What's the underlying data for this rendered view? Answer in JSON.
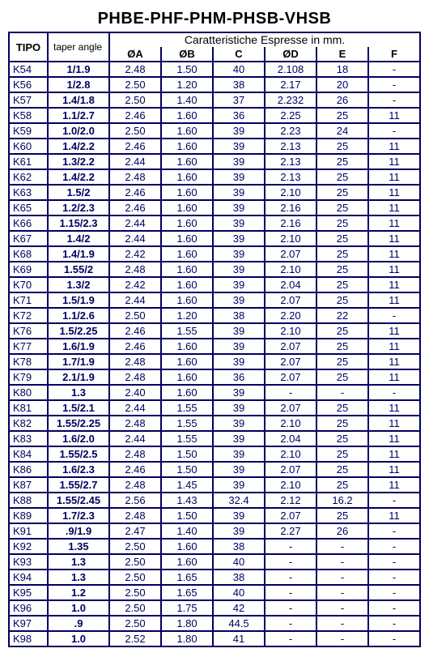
{
  "title": "PHBE-PHF-PHM-PHSB-VHSB",
  "headers": {
    "tipo": "TIPO",
    "taper": "taper angle",
    "characteristics": "Caratteristiche Espresse in mm.",
    "cols": [
      "ØA",
      "ØB",
      "C",
      "ØD",
      "E",
      "F"
    ]
  },
  "rows": [
    {
      "tipo": "K54",
      "taper": "1/1.9",
      "a": "2.48",
      "b": "1.50",
      "c": "40",
      "d": "2.108",
      "e": "18",
      "f": "-"
    },
    {
      "tipo": "K56",
      "taper": "1/2.8",
      "a": "2.50",
      "b": "1.20",
      "c": "38",
      "d": "2.17",
      "e": "20",
      "f": "-"
    },
    {
      "tipo": "K57",
      "taper": "1.4/1.8",
      "a": "2.50",
      "b": "1.40",
      "c": "37",
      "d": "2.232",
      "e": "26",
      "f": "-"
    },
    {
      "tipo": "K58",
      "taper": "1.1/2.7",
      "a": "2.46",
      "b": "1.60",
      "c": "36",
      "d": "2.25",
      "e": "25",
      "f": "11"
    },
    {
      "tipo": "K59",
      "taper": "1.0/2.0",
      "a": "2.50",
      "b": "1.60",
      "c": "39",
      "d": "2.23",
      "e": "24",
      "f": "-"
    },
    {
      "tipo": "K60",
      "taper": "1.4/2.2",
      "a": "2.46",
      "b": "1.60",
      "c": "39",
      "d": "2.13",
      "e": "25",
      "f": "11"
    },
    {
      "tipo": "K61",
      "taper": "1.3/2.2",
      "a": "2.44",
      "b": "1.60",
      "c": "39",
      "d": "2.13",
      "e": "25",
      "f": "11"
    },
    {
      "tipo": "K62",
      "taper": "1.4/2.2",
      "a": "2.48",
      "b": "1.60",
      "c": "39",
      "d": "2.13",
      "e": "25",
      "f": "11"
    },
    {
      "tipo": "K63",
      "taper": "1.5/2",
      "a": "2.46",
      "b": "1.60",
      "c": "39",
      "d": "2.10",
      "e": "25",
      "f": "11"
    },
    {
      "tipo": "K65",
      "taper": "1.2/2.3",
      "a": "2.46",
      "b": "1.60",
      "c": "39",
      "d": "2.16",
      "e": "25",
      "f": "11"
    },
    {
      "tipo": "K66",
      "taper": "1.15/2.3",
      "a": "2.44",
      "b": "1.60",
      "c": "39",
      "d": "2.16",
      "e": "25",
      "f": "11"
    },
    {
      "tipo": "K67",
      "taper": "1.4/2",
      "a": "2.44",
      "b": "1.60",
      "c": "39",
      "d": "2.10",
      "e": "25",
      "f": "11"
    },
    {
      "tipo": "K68",
      "taper": "1.4/1.9",
      "a": "2.42",
      "b": "1.60",
      "c": "39",
      "d": "2.07",
      "e": "25",
      "f": "11"
    },
    {
      "tipo": "K69",
      "taper": "1.55/2",
      "a": "2.48",
      "b": "1.60",
      "c": "39",
      "d": "2.10",
      "e": "25",
      "f": "11"
    },
    {
      "tipo": "K70",
      "taper": "1.3/2",
      "a": "2.42",
      "b": "1.60",
      "c": "39",
      "d": "2.04",
      "e": "25",
      "f": "11"
    },
    {
      "tipo": "K71",
      "taper": "1.5/1.9",
      "a": "2.44",
      "b": "1.60",
      "c": "39",
      "d": "2.07",
      "e": "25",
      "f": "11"
    },
    {
      "tipo": "K72",
      "taper": "1.1/2.6",
      "a": "2.50",
      "b": "1.20",
      "c": "38",
      "d": "2.20",
      "e": "22",
      "f": "-"
    },
    {
      "tipo": "K76",
      "taper": "1.5/2.25",
      "a": "2.46",
      "b": "1.55",
      "c": "39",
      "d": "2.10",
      "e": "25",
      "f": "11"
    },
    {
      "tipo": "K77",
      "taper": "1.6/1.9",
      "a": "2.46",
      "b": "1.60",
      "c": "39",
      "d": "2.07",
      "e": "25",
      "f": "11"
    },
    {
      "tipo": "K78",
      "taper": "1.7/1.9",
      "a": "2.48",
      "b": "1.60",
      "c": "39",
      "d": "2.07",
      "e": "25",
      "f": "11"
    },
    {
      "tipo": "K79",
      "taper": "2.1/1.9",
      "a": "2.48",
      "b": "1.60",
      "c": "36",
      "d": "2.07",
      "e": "25",
      "f": "11"
    },
    {
      "tipo": "K80",
      "taper": "1.3",
      "a": "2.40",
      "b": "1.60",
      "c": "39",
      "d": "-",
      "e": "-",
      "f": "-"
    },
    {
      "tipo": "K81",
      "taper": "1.5/2.1",
      "a": "2.44",
      "b": "1.55",
      "c": "39",
      "d": "2.07",
      "e": "25",
      "f": "11"
    },
    {
      "tipo": "K82",
      "taper": "1.55/2.25",
      "a": "2.48",
      "b": "1.55",
      "c": "39",
      "d": "2.10",
      "e": "25",
      "f": "11"
    },
    {
      "tipo": "K83",
      "taper": "1.6/2.0",
      "a": "2.44",
      "b": "1.55",
      "c": "39",
      "d": "2.04",
      "e": "25",
      "f": "11"
    },
    {
      "tipo": "K84",
      "taper": "1.55/2.5",
      "a": "2.48",
      "b": "1.50",
      "c": "39",
      "d": "2.10",
      "e": "25",
      "f": "11"
    },
    {
      "tipo": "K86",
      "taper": "1.6/2.3",
      "a": "2.46",
      "b": "1.50",
      "c": "39",
      "d": "2.07",
      "e": "25",
      "f": "11"
    },
    {
      "tipo": "K87",
      "taper": "1.55/2.7",
      "a": "2.48",
      "b": "1.45",
      "c": "39",
      "d": "2.10",
      "e": "25",
      "f": "11"
    },
    {
      "tipo": "K88",
      "taper": "1.55/2.45",
      "a": "2.56",
      "b": "1.43",
      "c": "32.4",
      "d": "2.12",
      "e": "16.2",
      "f": "-"
    },
    {
      "tipo": "K89",
      "taper": "1.7/2.3",
      "a": "2.48",
      "b": "1.50",
      "c": "39",
      "d": "2.07",
      "e": "25",
      "f": "11"
    },
    {
      "tipo": "K91",
      "taper": ".9/1.9",
      "a": "2.47",
      "b": "1.40",
      "c": "39",
      "d": "2.27",
      "e": "26",
      "f": "-"
    },
    {
      "tipo": "K92",
      "taper": "1.35",
      "a": "2.50",
      "b": "1.60",
      "c": "38",
      "d": "-",
      "e": "-",
      "f": "-"
    },
    {
      "tipo": "K93",
      "taper": "1.3",
      "a": "2.50",
      "b": "1.60",
      "c": "40",
      "d": "-",
      "e": "-",
      "f": "-"
    },
    {
      "tipo": "K94",
      "taper": "1.3",
      "a": "2.50",
      "b": "1.65",
      "c": "38",
      "d": "-",
      "e": "-",
      "f": "-"
    },
    {
      "tipo": "K95",
      "taper": "1.2",
      "a": "2.50",
      "b": "1.65",
      "c": "40",
      "d": "-",
      "e": "-",
      "f": "-"
    },
    {
      "tipo": "K96",
      "taper": "1.0",
      "a": "2.50",
      "b": "1.75",
      "c": "42",
      "d": "-",
      "e": "-",
      "f": "-"
    },
    {
      "tipo": "K97",
      "taper": ".9",
      "a": "2.50",
      "b": "1.80",
      "c": "44.5",
      "d": "-",
      "e": "-",
      "f": "-"
    },
    {
      "tipo": "K98",
      "taper": "1.0",
      "a": "2.52",
      "b": "1.80",
      "c": "41",
      "d": "-",
      "e": "-",
      "f": "-"
    }
  ]
}
